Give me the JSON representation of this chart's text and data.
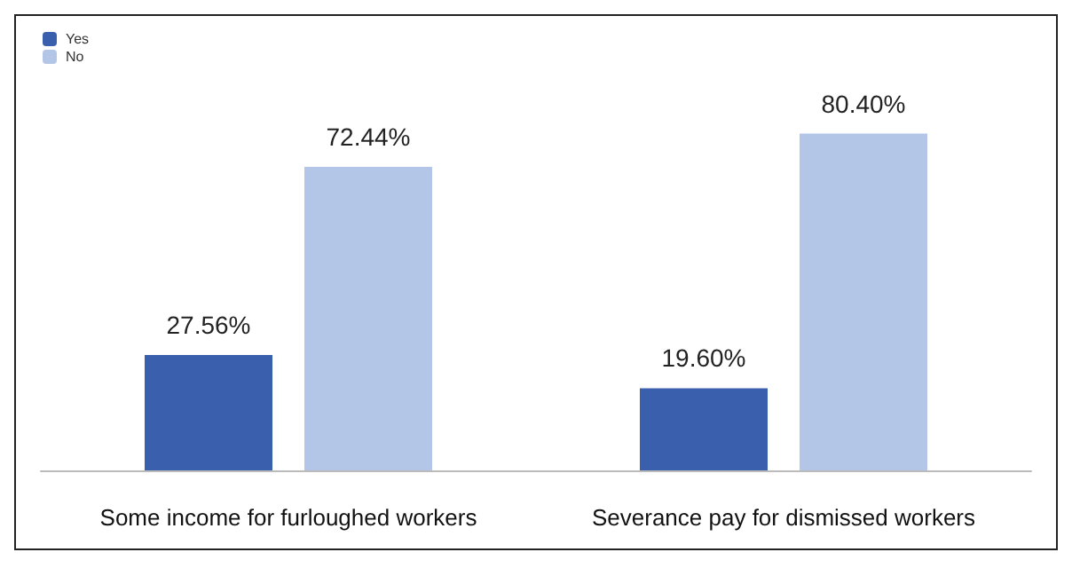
{
  "chart_data": {
    "type": "bar",
    "categories": [
      "Some income for furloughed workers",
      "Severance pay for dismissed workers"
    ],
    "series": [
      {
        "name": "Yes",
        "color": "#3a5fad",
        "values": [
          27.56,
          19.6
        ],
        "value_labels": [
          "27.56%",
          "19.60%"
        ]
      },
      {
        "name": "No",
        "color": "#b4c6e7",
        "values": [
          72.44,
          80.4
        ],
        "value_labels": [
          "72.44%",
          "80.40%"
        ]
      }
    ],
    "legend": "top left"
  }
}
